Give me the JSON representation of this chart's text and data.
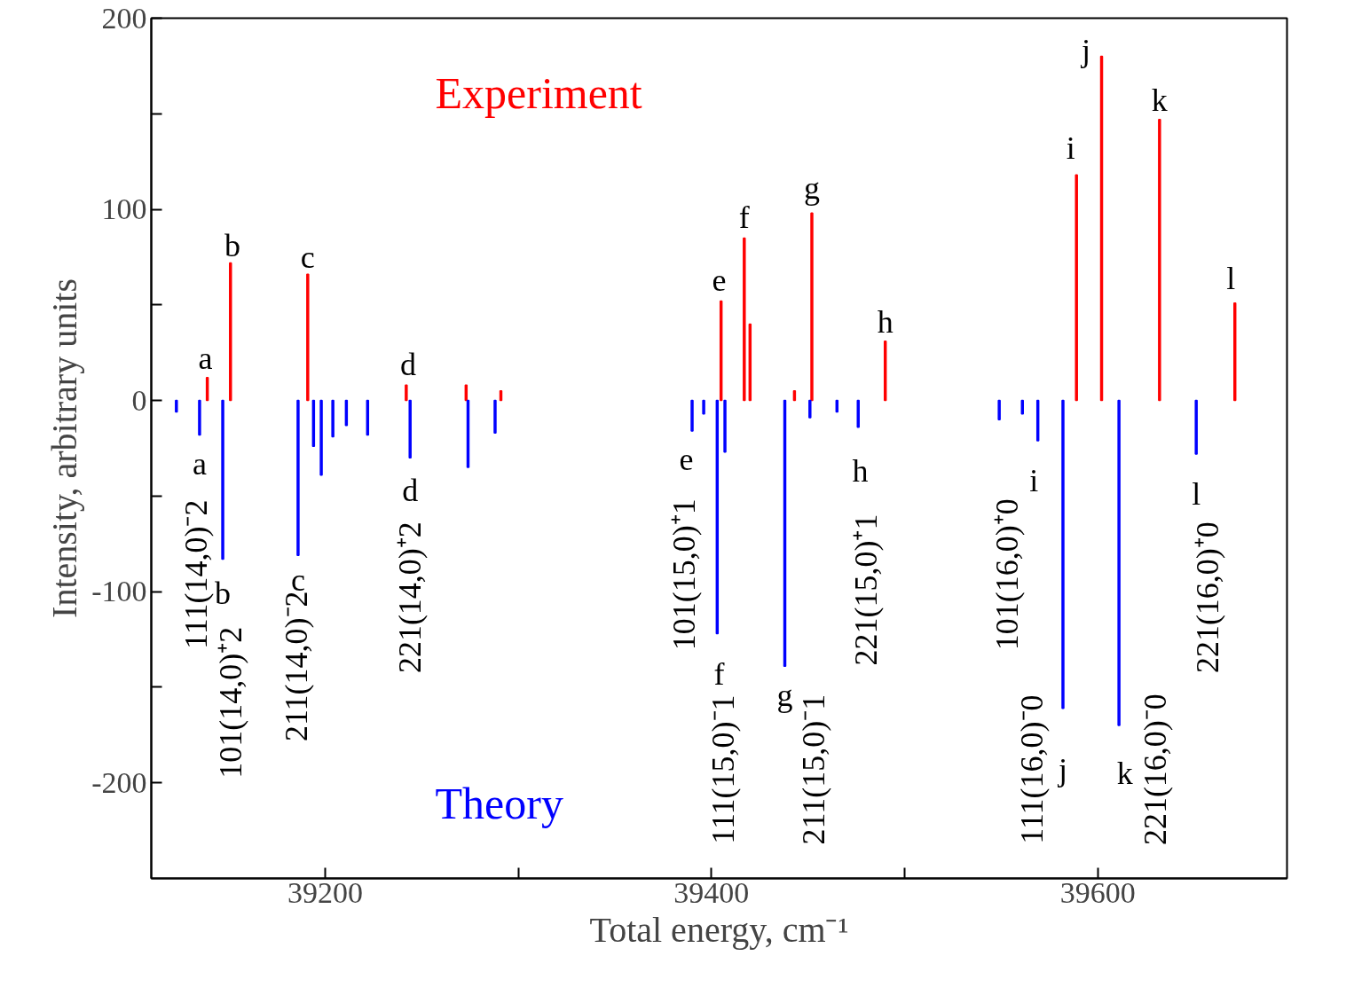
{
  "chart_data": {
    "type": "bar",
    "xlabel": "Total energy, cm⁻¹",
    "ylabel": "Intensity, arbitrary units",
    "xlim": [
      39110,
      39698
    ],
    "xticks": [
      39200,
      {
        "value": 39300,
        "label": null
      },
      39400,
      {
        "value": 39500,
        "label": null
      },
      39600
    ],
    "ylim": [
      -250,
      200
    ],
    "yticks": [
      -200,
      {
        "value": -150,
        "label": null
      },
      -100,
      {
        "value": -50,
        "label": null
      },
      0,
      {
        "value": 50,
        "label": null
      },
      100,
      {
        "value": 150,
        "label": null
      },
      200
    ],
    "grid": false,
    "legend": false,
    "series": [
      {
        "name": "Experiment",
        "color": "#ff0000",
        "x": [
          39139,
          39151,
          39191,
          39242,
          39273,
          39291,
          39405,
          39417,
          39420,
          39443,
          39452,
          39490,
          39589,
          39602,
          39632,
          39671
        ],
        "values": [
          12,
          72,
          66,
          8,
          8,
          5,
          52,
          85,
          40,
          5,
          98,
          31,
          118,
          180,
          147,
          51
        ]
      },
      {
        "name": "Theory",
        "color": "#0000ff",
        "x": [
          39123,
          39135,
          39147,
          39186,
          39194,
          39198,
          39204,
          39211,
          39222,
          39244,
          39274,
          39288,
          39390,
          39396,
          39403,
          39407,
          39438,
          39451,
          39465,
          39476,
          39549,
          39561,
          39569,
          39582,
          39611,
          39651
        ],
        "values": [
          -6,
          -18,
          -83,
          -81,
          -24,
          -39,
          -19,
          -13,
          -18,
          -30,
          -35,
          -17,
          -16,
          -7,
          -122,
          -27,
          -139,
          -9,
          -6,
          -14,
          -10,
          -7,
          -21,
          -161,
          -170,
          -28
        ]
      }
    ],
    "annotations": [
      "a",
      "b",
      "c",
      "d",
      "e",
      "f",
      "g",
      "h",
      "i",
      "j",
      "k",
      "l",
      "a",
      "b",
      "c",
      "d",
      "e",
      "f",
      "g",
      "h",
      "i",
      "j",
      "k",
      "l",
      "111(14,0)⁻2",
      "101(14,0)⁺2",
      "211(14,0)⁻2",
      "221(14,0)⁺2",
      "101(15,0)⁺1",
      "111(15,0)⁻1",
      "211(15,0)⁻1",
      "221(15,0)⁺1",
      "101(16,0)⁺0",
      "111(16,0)⁻0",
      "221(16,0)⁻0",
      "221(16,0)⁺0"
    ]
  }
}
